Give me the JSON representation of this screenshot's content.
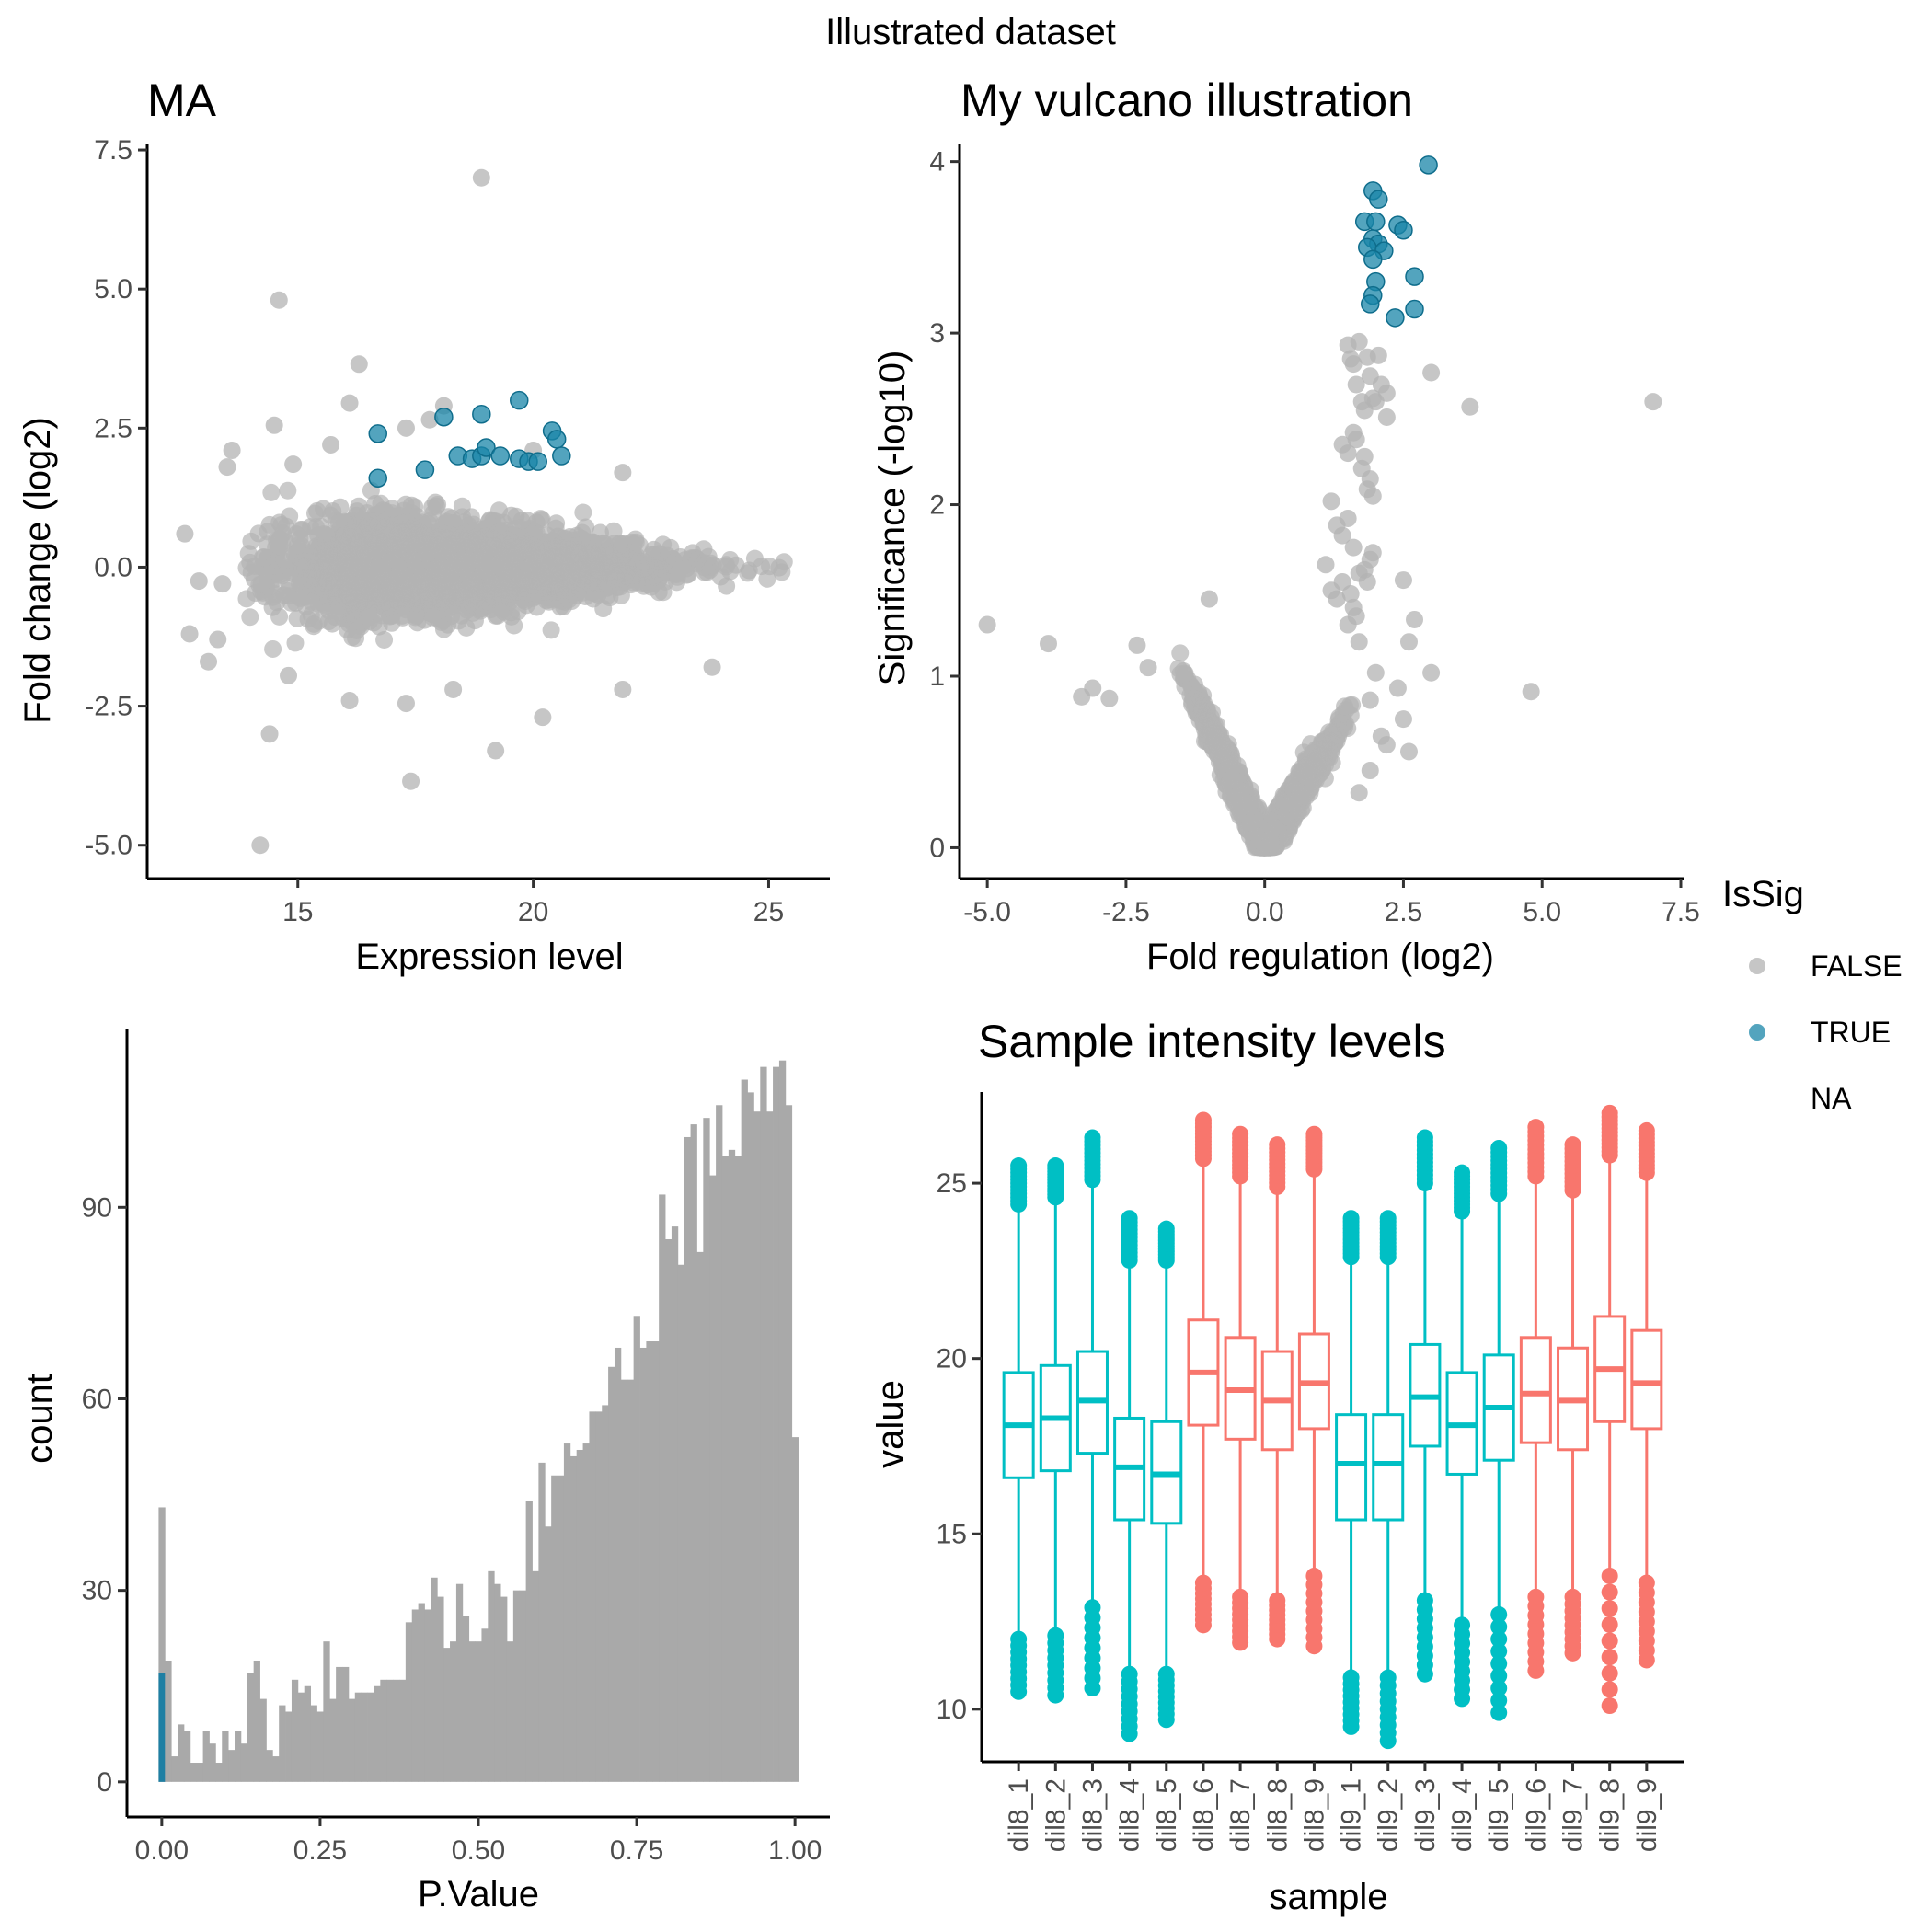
{
  "figure": {
    "title": "Illustrated dataset"
  },
  "colors": {
    "nonsig": "#b3b3b3",
    "sig": "#1a85a8",
    "hist_nonsig": "#a9a9a9",
    "hist_sig": "#1f7fa3",
    "group_cyan": "#00bfc4",
    "group_red": "#f8766d"
  },
  "legend": {
    "title": "IsSig",
    "items": [
      {
        "label": "FALSE",
        "color": "#b3b3b3"
      },
      {
        "label": "TRUE",
        "color": "#1a85a8"
      },
      {
        "label": "NA",
        "color": ""
      }
    ]
  },
  "chart_data": [
    {
      "id": "ma",
      "type": "scatter",
      "title": "MA",
      "xlabel": "Expression level",
      "ylabel": "Fold change (log2)",
      "xlim": [
        11.8,
        26.3
      ],
      "ylim": [
        -5.6,
        7.6
      ],
      "xticks": [
        15,
        20,
        25
      ],
      "xtick_labels": [
        "15",
        "20",
        "25"
      ],
      "yticks": [
        -5,
        -2.5,
        0,
        2.5,
        5,
        7.5
      ],
      "ytick_labels": [
        "-5.0",
        "-2.5",
        "0.0",
        "2.5",
        "5.0",
        "7.5"
      ],
      "bulk": {
        "xmin": 13.9,
        "xmax": 25.5,
        "peak": 17.5,
        "sd_left": 1.4,
        "sd_right": 2.4,
        "n": 3400
      },
      "outliers_false": [
        [
          12.6,
          0.6
        ],
        [
          12.9,
          -0.25
        ],
        [
          12.7,
          -1.2
        ],
        [
          13.1,
          -1.7
        ],
        [
          13.4,
          -0.3
        ],
        [
          13.3,
          -1.3
        ],
        [
          13.5,
          1.8
        ],
        [
          13.6,
          2.1
        ],
        [
          14.6,
          4.8
        ],
        [
          14.5,
          2.55
        ],
        [
          16.3,
          3.65
        ],
        [
          14.2,
          -5.0
        ],
        [
          14.4,
          -3.0
        ],
        [
          14.8,
          -1.95
        ],
        [
          16.1,
          -2.4
        ],
        [
          17.3,
          -2.45
        ],
        [
          17.4,
          -3.85
        ],
        [
          18.3,
          -2.2
        ],
        [
          19.2,
          -3.3
        ],
        [
          20.2,
          -2.7
        ],
        [
          21.9,
          -2.2
        ],
        [
          23.8,
          -1.8
        ],
        [
          18.9,
          7.0
        ],
        [
          16.1,
          2.95
        ],
        [
          18.1,
          2.9
        ],
        [
          17.3,
          2.5
        ],
        [
          15.7,
          2.2
        ],
        [
          14.9,
          1.85
        ],
        [
          21.9,
          1.7
        ],
        [
          20.0,
          2.1
        ],
        [
          17.8,
          2.65
        ]
      ],
      "sig_points": [
        [
          16.7,
          2.4
        ],
        [
          16.7,
          1.6
        ],
        [
          17.7,
          1.75
        ],
        [
          18.1,
          2.7
        ],
        [
          18.4,
          2.0
        ],
        [
          18.7,
          1.95
        ],
        [
          18.9,
          2.0
        ],
        [
          19.0,
          2.15
        ],
        [
          19.3,
          2.0
        ],
        [
          19.7,
          1.95
        ],
        [
          19.9,
          1.9
        ],
        [
          20.1,
          1.9
        ],
        [
          18.9,
          2.75
        ],
        [
          19.7,
          3.0
        ],
        [
          20.4,
          2.45
        ],
        [
          20.5,
          2.3
        ],
        [
          20.6,
          2.0
        ]
      ]
    },
    {
      "id": "volcano",
      "type": "scatter",
      "title": "My vulcano illustration",
      "xlabel": "Fold regulation (log2)",
      "ylabel": "Significance (-log10)",
      "xlim": [
        -5.5,
        7.55
      ],
      "ylim": [
        -0.18,
        4.1
      ],
      "xticks": [
        -5,
        -2.5,
        0,
        2.5,
        5,
        7.5
      ],
      "xtick_labels": [
        "-5.0",
        "-2.5",
        "0.0",
        "2.5",
        "5.0",
        "7.5"
      ],
      "yticks": [
        0,
        1,
        2,
        3,
        4
      ],
      "ytick_labels": [
        "0",
        "1",
        "2",
        "3",
        "4"
      ],
      "outliers_false": [
        [
          -5.0,
          1.3
        ],
        [
          -3.9,
          1.19
        ],
        [
          -3.3,
          0.88
        ],
        [
          -3.1,
          0.93
        ],
        [
          -2.8,
          0.87
        ],
        [
          -2.3,
          1.18
        ],
        [
          -2.1,
          1.05
        ],
        [
          -1.0,
          1.45
        ],
        [
          4.8,
          0.91
        ],
        [
          7.0,
          2.6
        ],
        [
          3.7,
          2.57
        ],
        [
          3.0,
          2.77
        ],
        [
          2.5,
          1.56
        ],
        [
          2.7,
          1.33
        ],
        [
          2.6,
          1.2
        ],
        [
          3.0,
          1.02
        ],
        [
          2.5,
          0.75
        ],
        [
          2.6,
          0.56
        ],
        [
          2.4,
          0.93
        ],
        [
          1.9,
          0.86
        ],
        [
          2.1,
          0.65
        ],
        [
          2.2,
          0.6
        ],
        [
          1.9,
          0.45
        ],
        [
          1.7,
          0.32
        ],
        [
          2.0,
          1.02
        ]
      ],
      "right_arm": [
        [
          1.5,
          2.93
        ],
        [
          1.55,
          2.85
        ],
        [
          1.6,
          2.82
        ],
        [
          1.65,
          2.7
        ],
        [
          1.7,
          2.95
        ],
        [
          1.75,
          2.6
        ],
        [
          1.8,
          2.55
        ],
        [
          1.85,
          2.86
        ],
        [
          1.9,
          2.75
        ],
        [
          1.95,
          2.62
        ],
        [
          2.0,
          2.6
        ],
        [
          2.05,
          2.87
        ],
        [
          2.1,
          2.7
        ],
        [
          2.2,
          2.51
        ],
        [
          2.2,
          2.65
        ],
        [
          1.4,
          2.35
        ],
        [
          1.5,
          2.3
        ],
        [
          1.6,
          2.42
        ],
        [
          1.65,
          2.38
        ],
        [
          1.75,
          2.21
        ],
        [
          1.8,
          2.28
        ],
        [
          1.85,
          2.09
        ],
        [
          1.9,
          2.15
        ],
        [
          1.95,
          2.05
        ],
        [
          1.2,
          2.02
        ],
        [
          1.3,
          1.88
        ],
        [
          1.4,
          1.82
        ],
        [
          1.5,
          1.92
        ],
        [
          1.6,
          1.75
        ],
        [
          1.7,
          1.6
        ],
        [
          1.8,
          1.62
        ],
        [
          1.85,
          1.55
        ],
        [
          1.9,
          1.68
        ],
        [
          1.95,
          1.72
        ],
        [
          1.1,
          1.65
        ],
        [
          1.2,
          1.5
        ],
        [
          1.3,
          1.45
        ],
        [
          1.4,
          1.55
        ],
        [
          1.5,
          1.3
        ],
        [
          1.55,
          1.48
        ],
        [
          1.6,
          1.4
        ],
        [
          1.65,
          1.35
        ],
        [
          1.7,
          1.2
        ]
      ],
      "sig_points": [
        [
          2.95,
          3.98
        ],
        [
          1.95,
          3.83
        ],
        [
          2.05,
          3.78
        ],
        [
          1.8,
          3.65
        ],
        [
          2.0,
          3.65
        ],
        [
          2.4,
          3.63
        ],
        [
          2.5,
          3.6
        ],
        [
          1.95,
          3.55
        ],
        [
          2.05,
          3.52
        ],
        [
          1.85,
          3.5
        ],
        [
          2.15,
          3.48
        ],
        [
          1.95,
          3.43
        ],
        [
          2.0,
          3.3
        ],
        [
          2.7,
          3.33
        ],
        [
          1.95,
          3.22
        ],
        [
          1.9,
          3.17
        ],
        [
          2.7,
          3.14
        ],
        [
          2.35,
          3.09
        ]
      ]
    },
    {
      "id": "pvalue",
      "type": "bar",
      "title": "",
      "xlabel": "P.Value",
      "ylabel": "count",
      "xlim": [
        -0.055,
        1.055
      ],
      "ylim": [
        -5.5,
        118
      ],
      "xticks": [
        0,
        0.25,
        0.5,
        0.75,
        1
      ],
      "xtick_labels": [
        "0.00",
        "0.25",
        "0.50",
        "0.75",
        "1.00"
      ],
      "yticks": [
        0,
        30,
        60,
        90
      ],
      "ytick_labels": [
        "0",
        "30",
        "60",
        "90"
      ],
      "bin_width": 0.01,
      "counts": [
        43,
        19,
        4,
        9,
        8,
        3,
        3,
        8,
        6,
        3,
        8,
        5,
        8,
        6,
        17,
        19,
        13,
        5,
        4,
        12,
        11,
        16,
        14,
        15,
        12,
        11,
        22,
        13,
        18,
        18,
        13,
        14,
        14,
        14,
        15,
        16,
        16,
        16,
        16,
        25,
        27,
        28,
        27,
        32,
        29,
        21,
        22,
        31,
        26,
        22,
        22,
        24,
        33,
        31,
        29,
        22,
        30,
        30,
        44,
        33,
        50,
        40,
        48,
        48,
        53,
        51,
        52,
        53,
        58,
        58,
        59,
        65,
        68,
        63,
        63,
        73,
        68,
        69,
        69,
        92,
        85,
        87,
        81,
        101,
        103,
        83,
        104,
        95,
        106,
        98,
        99,
        98,
        110,
        108,
        105,
        112,
        105,
        112,
        113,
        106,
        54
      ],
      "sig_counts": [
        17
      ]
    },
    {
      "id": "intensity",
      "type": "box",
      "title": "Sample intensity levels",
      "xlabel": "sample",
      "ylabel": "value",
      "ylim": [
        8.5,
        27.6
      ],
      "yticks": [
        10,
        15,
        20,
        25
      ],
      "ytick_labels": [
        "10",
        "15",
        "20",
        "25"
      ],
      "categories": [
        "dil8_1",
        "dil8_2",
        "dil8_3",
        "dil8_4",
        "dil8_5",
        "dil8_6",
        "dil8_7",
        "dil8_8",
        "dil8_9",
        "dil9_1",
        "dil9_2",
        "dil9_3",
        "dil9_4",
        "dil9_5",
        "dil9_6",
        "dil9_7",
        "dil9_8",
        "dil9_9"
      ],
      "groups": [
        "cyan",
        "cyan",
        "cyan",
        "cyan",
        "cyan",
        "red",
        "red",
        "red",
        "red",
        "cyan",
        "cyan",
        "cyan",
        "cyan",
        "cyan",
        "red",
        "red",
        "red",
        "red"
      ],
      "boxes": [
        {
          "q1": 16.6,
          "median": 18.1,
          "q3": 19.6,
          "whisker_low": 12.2,
          "whisker_high": 24.3,
          "out_low_max": 12.0,
          "out_low_min": 10.5,
          "out_high_min": 24.4,
          "out_high_max": 25.5
        },
        {
          "q1": 16.8,
          "median": 18.3,
          "q3": 19.8,
          "whisker_low": 12.3,
          "whisker_high": 24.5,
          "out_low_max": 12.1,
          "out_low_min": 10.4,
          "out_high_min": 24.6,
          "out_high_max": 25.5
        },
        {
          "q1": 17.3,
          "median": 18.8,
          "q3": 20.2,
          "whisker_low": 13.0,
          "whisker_high": 25.0,
          "out_low_max": 12.9,
          "out_low_min": 10.6,
          "out_high_min": 25.1,
          "out_high_max": 26.3
        },
        {
          "q1": 15.4,
          "median": 16.9,
          "q3": 18.3,
          "whisker_low": 11.2,
          "whisker_high": 22.7,
          "out_low_max": 11.0,
          "out_low_min": 9.3,
          "out_high_min": 22.8,
          "out_high_max": 24.0
        },
        {
          "q1": 15.3,
          "median": 16.7,
          "q3": 18.2,
          "whisker_low": 11.2,
          "whisker_high": 22.6,
          "out_low_max": 11.0,
          "out_low_min": 9.7,
          "out_high_min": 22.8,
          "out_high_max": 23.7
        },
        {
          "q1": 18.1,
          "median": 19.6,
          "q3": 21.1,
          "whisker_low": 13.7,
          "whisker_high": 25.6,
          "out_low_max": 13.6,
          "out_low_min": 12.4,
          "out_high_min": 25.7,
          "out_high_max": 26.8
        },
        {
          "q1": 17.7,
          "median": 19.1,
          "q3": 20.6,
          "whisker_low": 13.3,
          "whisker_high": 25.1,
          "out_low_max": 13.2,
          "out_low_min": 11.9,
          "out_high_min": 25.2,
          "out_high_max": 26.4
        },
        {
          "q1": 17.4,
          "median": 18.8,
          "q3": 20.2,
          "whisker_low": 13.2,
          "whisker_high": 24.8,
          "out_low_max": 13.1,
          "out_low_min": 12.0,
          "out_high_min": 24.9,
          "out_high_max": 26.1
        },
        {
          "q1": 18.0,
          "median": 19.3,
          "q3": 20.7,
          "whisker_low": 13.9,
          "whisker_high": 25.3,
          "out_low_max": 13.8,
          "out_low_min": 11.8,
          "out_high_min": 25.4,
          "out_high_max": 26.4
        },
        {
          "q1": 15.4,
          "median": 17.0,
          "q3": 18.4,
          "whisker_low": 11.0,
          "whisker_high": 22.8,
          "out_low_max": 10.9,
          "out_low_min": 9.5,
          "out_high_min": 22.9,
          "out_high_max": 24.0
        },
        {
          "q1": 15.4,
          "median": 17.0,
          "q3": 18.4,
          "whisker_low": 11.1,
          "whisker_high": 22.8,
          "out_low_max": 10.9,
          "out_low_min": 9.1,
          "out_high_min": 22.9,
          "out_high_max": 24.0
        },
        {
          "q1": 17.5,
          "median": 18.9,
          "q3": 20.4,
          "whisker_low": 13.2,
          "whisker_high": 24.9,
          "out_low_max": 13.1,
          "out_low_min": 11.0,
          "out_high_min": 25.0,
          "out_high_max": 26.3
        },
        {
          "q1": 16.7,
          "median": 18.1,
          "q3": 19.6,
          "whisker_low": 12.5,
          "whisker_high": 24.1,
          "out_low_max": 12.4,
          "out_low_min": 10.3,
          "out_high_min": 24.2,
          "out_high_max": 25.3
        },
        {
          "q1": 17.1,
          "median": 18.6,
          "q3": 20.1,
          "whisker_low": 12.8,
          "whisker_high": 24.6,
          "out_low_max": 12.7,
          "out_low_min": 9.9,
          "out_high_min": 24.7,
          "out_high_max": 26.0
        },
        {
          "q1": 17.6,
          "median": 19.0,
          "q3": 20.6,
          "whisker_low": 13.3,
          "whisker_high": 25.1,
          "out_low_max": 13.2,
          "out_low_min": 11.1,
          "out_high_min": 25.2,
          "out_high_max": 26.6
        },
        {
          "q1": 17.4,
          "median": 18.8,
          "q3": 20.3,
          "whisker_low": 13.3,
          "whisker_high": 24.7,
          "out_low_max": 13.2,
          "out_low_min": 11.6,
          "out_high_min": 24.8,
          "out_high_max": 26.1
        },
        {
          "q1": 18.2,
          "median": 19.7,
          "q3": 21.2,
          "whisker_low": 13.9,
          "whisker_high": 25.7,
          "out_low_max": 13.8,
          "out_low_min": 10.1,
          "out_high_min": 25.8,
          "out_high_max": 27.0
        },
        {
          "q1": 18.0,
          "median": 19.3,
          "q3": 20.8,
          "whisker_low": 13.7,
          "whisker_high": 25.2,
          "out_low_max": 13.6,
          "out_low_min": 11.4,
          "out_high_min": 25.3,
          "out_high_max": 26.5
        }
      ]
    }
  ]
}
